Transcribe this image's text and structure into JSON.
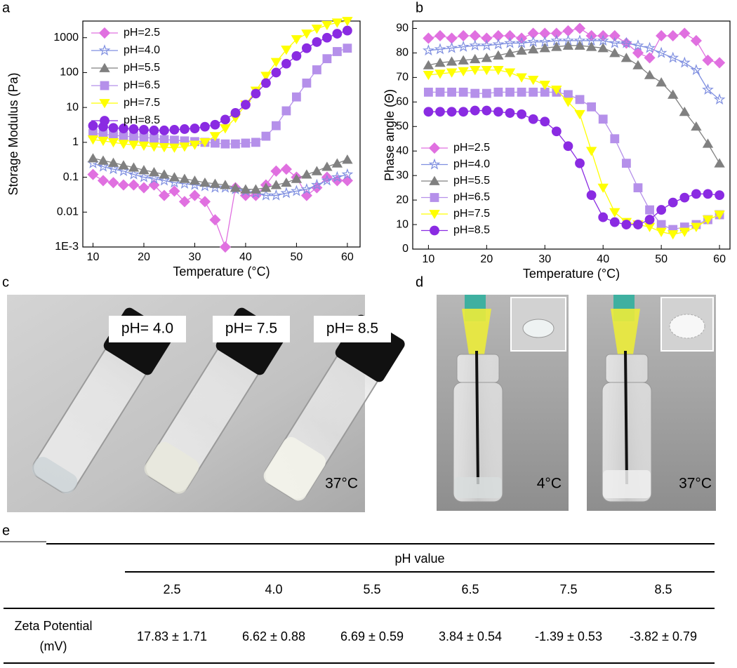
{
  "chart_data": [
    {
      "type": "line",
      "panel": "a",
      "x_label": "Temperature (°C)",
      "y_label": "Storage Modulus (Pa)",
      "log_scale": true,
      "legend": "upper left",
      "xlim": [
        8,
        62.5
      ],
      "xticks": [
        10,
        20,
        30,
        40,
        50,
        60
      ],
      "ylim": [
        0.001,
        3000
      ],
      "yticks": [
        {
          "value": 0.001,
          "label": "1E-3"
        },
        0.01,
        0.1,
        1,
        10,
        100,
        1000
      ],
      "x": [
        10,
        12,
        14,
        16,
        18,
        20,
        22,
        24,
        26,
        28,
        30,
        32,
        34,
        36,
        38,
        40,
        42,
        44,
        46,
        48,
        50,
        52,
        54,
        56,
        58,
        60
      ],
      "series": [
        {
          "name": "pH=2.5",
          "color": "#e070e0",
          "marker": "diamond",
          "values": [
            0.12,
            0.08,
            0.07,
            0.06,
            0.06,
            0.05,
            0.06,
            0.03,
            0.04,
            0.02,
            0.03,
            0.02,
            0.006,
            0.001,
            0.05,
            0.03,
            0.03,
            0.06,
            0.15,
            0.17,
            0.1,
            0.03,
            0.05,
            0.1,
            0.08,
            0.08
          ]
        },
        {
          "name": "pH=4.0",
          "color": "#7f8fe0",
          "marker": "star",
          "values": [
            0.25,
            0.2,
            0.17,
            0.15,
            0.12,
            0.1,
            0.09,
            0.08,
            0.07,
            0.065,
            0.06,
            0.055,
            0.05,
            0.05,
            0.045,
            0.04,
            0.035,
            0.03,
            0.03,
            0.035,
            0.04,
            0.045,
            0.06,
            0.08,
            0.1,
            0.12
          ]
        },
        {
          "name": "pH=5.5",
          "color": "#808080",
          "marker": "triangle",
          "values": [
            0.35,
            0.3,
            0.26,
            0.22,
            0.19,
            0.16,
            0.14,
            0.12,
            0.1,
            0.09,
            0.08,
            0.07,
            0.065,
            0.06,
            0.05,
            0.045,
            0.045,
            0.05,
            0.06,
            0.07,
            0.09,
            0.12,
            0.15,
            0.2,
            0.25,
            0.32
          ]
        },
        {
          "name": "pH=6.5",
          "color": "#b590ea",
          "marker": "square",
          "values": [
            1.8,
            1.7,
            1.6,
            1.5,
            1.45,
            1.4,
            1.3,
            1.2,
            1.15,
            1.1,
            1.05,
            1.0,
            0.95,
            0.9,
            0.9,
            0.95,
            1.0,
            1.5,
            3,
            8,
            20,
            50,
            120,
            250,
            400,
            500
          ]
        },
        {
          "name": "pH=7.5",
          "color": "#ffff00",
          "marker": "triangle-down",
          "values": [
            1.2,
            1.1,
            1.0,
            0.9,
            0.85,
            0.8,
            0.75,
            0.72,
            0.7,
            0.75,
            0.85,
            1.0,
            1.5,
            2.5,
            5,
            12,
            30,
            80,
            200,
            450,
            900,
            1300,
            1800,
            2300,
            2700,
            3000
          ]
        },
        {
          "name": "pH=8.5",
          "color": "#8a2be2",
          "marker": "circle",
          "values": [
            3.0,
            2.8,
            2.6,
            2.5,
            2.4,
            2.3,
            2.2,
            2.2,
            2.3,
            2.4,
            2.5,
            2.8,
            3.2,
            4.5,
            7,
            12,
            25,
            50,
            100,
            180,
            300,
            500,
            750,
            1000,
            1300,
            1600
          ]
        }
      ]
    },
    {
      "type": "line",
      "panel": "b",
      "x_label": "Temperature (°C)",
      "y_label": "Phase angle (Θ)",
      "log_scale": false,
      "legend": "lower left",
      "xlim": [
        7.3,
        61.8
      ],
      "xticks": [
        10,
        20,
        30,
        40,
        50,
        60
      ],
      "ylim": [
        0,
        93
      ],
      "yticks": [
        0,
        10,
        20,
        30,
        40,
        50,
        60,
        70,
        80,
        90
      ],
      "x": [
        10,
        12,
        14,
        16,
        18,
        20,
        22,
        24,
        26,
        28,
        30,
        32,
        34,
        36,
        38,
        40,
        42,
        44,
        46,
        48,
        50,
        52,
        54,
        56,
        58,
        60
      ],
      "series": [
        {
          "name": "pH=2.5",
          "color": "#e070e0",
          "marker": "diamond",
          "values": [
            86,
            87,
            86,
            87,
            87,
            86,
            87,
            87,
            86,
            88,
            88,
            88,
            89,
            90,
            87,
            87,
            87,
            84,
            80,
            78,
            87,
            87,
            88,
            85,
            77,
            76
          ]
        },
        {
          "name": "pH=4.0",
          "color": "#7f8fe0",
          "marker": "star",
          "values": [
            81,
            81.5,
            82,
            82.5,
            83,
            83,
            83.5,
            84,
            84,
            84.5,
            84.5,
            85,
            85,
            85,
            85,
            85,
            84,
            84,
            83,
            82,
            80,
            78,
            76,
            73,
            65,
            61
          ]
        },
        {
          "name": "pH=5.5",
          "color": "#808080",
          "marker": "triangle",
          "values": [
            75,
            76,
            76.5,
            77,
            77.5,
            78,
            79,
            80,
            81,
            81.5,
            82,
            82.5,
            83,
            83,
            82.5,
            82,
            80,
            78,
            75,
            71,
            68,
            63,
            56,
            50,
            43,
            35
          ]
        },
        {
          "name": "pH=6.5",
          "color": "#b590ea",
          "marker": "square",
          "values": [
            64,
            64,
            64,
            64,
            63.5,
            63.5,
            64,
            64,
            64,
            64,
            64,
            64,
            63,
            61,
            58,
            53,
            45,
            35,
            25,
            16,
            10,
            8,
            9,
            10,
            12,
            14
          ]
        },
        {
          "name": "pH=7.5",
          "color": "#ffff00",
          "marker": "triangle-down",
          "values": [
            71,
            71.5,
            72,
            72.5,
            73,
            73,
            73,
            72,
            70,
            69,
            67,
            65,
            60,
            55,
            40,
            25,
            15,
            11,
            10,
            9,
            7,
            6,
            7,
            9,
            12,
            14
          ]
        },
        {
          "name": "pH=8.5",
          "color": "#8a2be2",
          "marker": "circle",
          "values": [
            56,
            56,
            56,
            56,
            56.5,
            56.5,
            56,
            55.5,
            55,
            53,
            52,
            48,
            42,
            35,
            22,
            13,
            11,
            10,
            10,
            12,
            16,
            19,
            21,
            22.5,
            22.5,
            22
          ]
        }
      ]
    }
  ],
  "photos": {
    "c": {
      "panel": "c",
      "labels": [
        "pH= 4.0",
        "pH= 7.5",
        "pH= 8.5"
      ],
      "temperature": "37°C"
    },
    "d": {
      "panel": "d",
      "temperatures": [
        "4°C",
        "37°C"
      ]
    }
  },
  "table": {
    "panel": "e",
    "header": "pH value",
    "columns": [
      "2.5",
      "4.0",
      "5.5",
      "6.5",
      "7.5",
      "8.5"
    ],
    "rows": [
      {
        "label": [
          "Zeta Potential",
          "(mV)"
        ],
        "cells": [
          "17.83 ± 1.71",
          "6.62 ± 0.88",
          "6.69 ± 0.59",
          "3.84 ± 0.54",
          "-1.39 ± 0.53",
          "-3.82 ± 0.79"
        ]
      }
    ]
  }
}
